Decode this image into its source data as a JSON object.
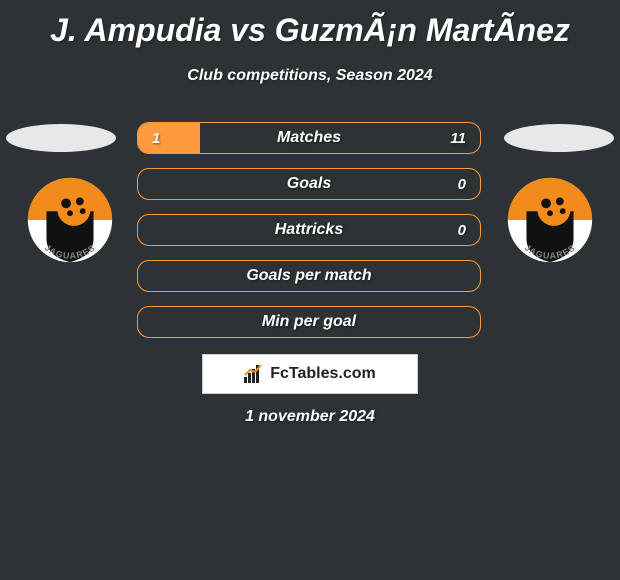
{
  "title": "J. Ampudia vs GuzmÃ¡n MartÃ­nez",
  "subtitle": "Club competitions, Season 2024",
  "date": "1 november 2024",
  "attribution": "FcTables.com",
  "colors": {
    "background": "#2d3234",
    "accent": "#ff9a3e",
    "text": "#ffffff"
  },
  "bars": [
    {
      "label": "Matches",
      "left_val": "1",
      "right_val": "11",
      "left_pct": 18,
      "right_pct": 0,
      "right_fill_from_right": false
    },
    {
      "label": "Goals",
      "left_val": "",
      "right_val": "0",
      "left_pct": 0,
      "right_pct": 0
    },
    {
      "label": "Hattricks",
      "left_val": "",
      "right_val": "0",
      "left_pct": 0,
      "right_pct": 0
    },
    {
      "label": "Goals per match",
      "left_val": "",
      "right_val": "",
      "left_pct": 0,
      "right_pct": 0
    },
    {
      "label": "Min per goal",
      "left_val": "",
      "right_val": "",
      "left_pct": 0,
      "right_pct": 0
    }
  ],
  "badge": {
    "bg": "#ffffff",
    "orange": "#f28a1c",
    "black": "#111111",
    "text": "JAGUARES"
  }
}
